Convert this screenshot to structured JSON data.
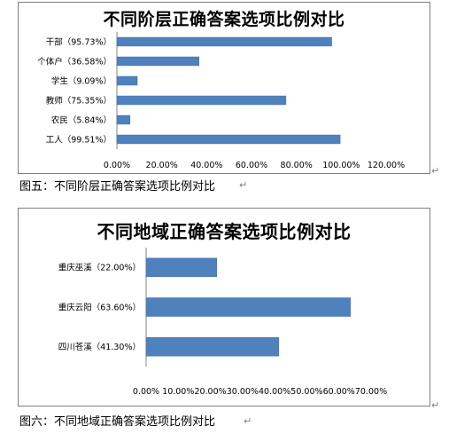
{
  "chart_data": [
    {
      "type": "bar",
      "orientation": "horizontal",
      "title": "不同阶层正确答案选项比例对比",
      "categories": [
        "干部（95.73%）",
        "个体户（36.58%）",
        "学生（9.09%）",
        "教师（75.35%）",
        "农民（5.84%）",
        "工人（99.51%）"
      ],
      "values": [
        95.73,
        36.58,
        9.09,
        75.35,
        5.84,
        99.51
      ],
      "xlim": [
        0,
        120
      ],
      "ticks": [
        "0.00%",
        "20.00%",
        "40.00%",
        "60.00%",
        "80.00%",
        "100.00%",
        "120.00%"
      ],
      "bar_color": "#4f81bd"
    },
    {
      "type": "bar",
      "orientation": "horizontal",
      "title": "不同地域正确答案选项比例对比",
      "categories": [
        "重庆巫溪（22.00%）",
        "重庆云阳（63.60%）",
        "四川苍溪（41.30%）"
      ],
      "values": [
        22.0,
        63.6,
        41.3
      ],
      "xlim": [
        0,
        70
      ],
      "ticks": [
        "0.00%",
        "10.00%",
        "20.00%",
        "30.00%",
        "40.00%",
        "50.00%",
        "60.00%",
        "70.00%"
      ],
      "bar_color": "#4f81bd"
    }
  ],
  "captions": {
    "fig5": "图五：不同阶层正确答案选项比例对比",
    "fig6": "图六：不同地域正确答案选项比例对比"
  }
}
